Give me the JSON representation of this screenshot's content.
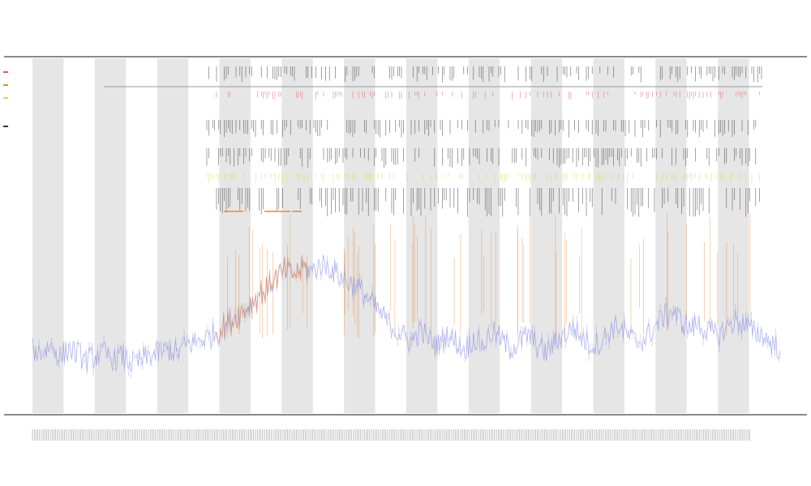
{
  "chart_data": {
    "type": "line",
    "title": "",
    "subtitle_lines": [
      "",
      ""
    ],
    "xlabel": "",
    "ylabel": "",
    "legend_position": "top-left",
    "grid": false,
    "colors": {
      "signal": "#7b7fe0",
      "highlight": "#e8863a",
      "band": "#e6e6e6",
      "annotation_red": "#e05a5a",
      "annotation_yellow": "#d8d84a",
      "annotation_black": "#333333",
      "annotation_orange": "#e8863a",
      "axis": "#333333"
    },
    "shaded_band_count": 12,
    "series": [
      {
        "name": "",
        "color": "#7b7fe0",
        "values": [
          0.18,
          0.17,
          0.19,
          0.16,
          0.18,
          0.17,
          0.15,
          0.16,
          0.17,
          0.15,
          0.16,
          0.14,
          0.15,
          0.16,
          0.17,
          0.18,
          0.17,
          0.19,
          0.2,
          0.21,
          0.22,
          0.24,
          0.26,
          0.28,
          0.3,
          0.33,
          0.35,
          0.38,
          0.4,
          0.39,
          0.41,
          0.4,
          0.42,
          0.41,
          0.39,
          0.37,
          0.36,
          0.33,
          0.3,
          0.27,
          0.24,
          0.22,
          0.2,
          0.23,
          0.21,
          0.19,
          0.22,
          0.2,
          0.18,
          0.21,
          0.19,
          0.23,
          0.21,
          0.18,
          0.2,
          0.22,
          0.19,
          0.17,
          0.2,
          0.22,
          0.24,
          0.21,
          0.19,
          0.2,
          0.23,
          0.25,
          0.22,
          0.2,
          0.21,
          0.24,
          0.27,
          0.29,
          0.26,
          0.24,
          0.25,
          0.23,
          0.22,
          0.24,
          0.26,
          0.25,
          0.23,
          0.22,
          0.2,
          0.18
        ]
      }
    ]
  }
}
